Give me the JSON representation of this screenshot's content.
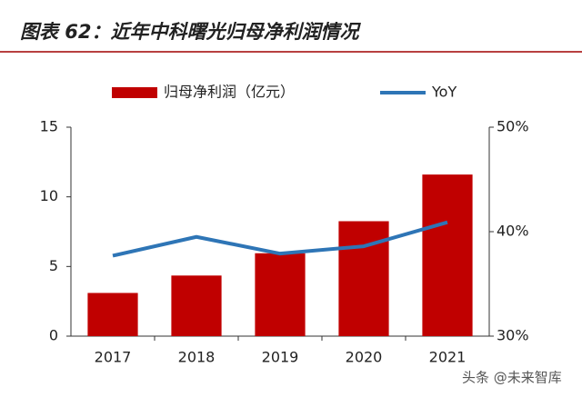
{
  "chart_data": {
    "type": "bar",
    "title": "图表 62：近年中科曙光归母净利润情况",
    "categories": [
      "2017",
      "2018",
      "2019",
      "2020",
      "2021"
    ],
    "series": [
      {
        "name": "归母净利润（亿元）",
        "type": "bar",
        "color": "#c00000",
        "values": [
          3.1,
          4.35,
          5.95,
          8.25,
          11.6
        ]
      },
      {
        "name": "YoY",
        "type": "line",
        "axis": "y2",
        "color": "#2e75b6",
        "values": [
          37.7,
          39.5,
          37.9,
          38.6,
          40.9
        ]
      }
    ],
    "ylim": [
      0,
      15
    ],
    "yticks": [
      0,
      5,
      10,
      15
    ],
    "y2lim": [
      30,
      50
    ],
    "y2ticks": [
      {
        "value": 30,
        "label": "30%"
      },
      {
        "value": 40,
        "label": "40%"
      },
      {
        "value": 50,
        "label": "50%"
      }
    ],
    "grid": false,
    "watermark": "头条 @未来智库"
  }
}
